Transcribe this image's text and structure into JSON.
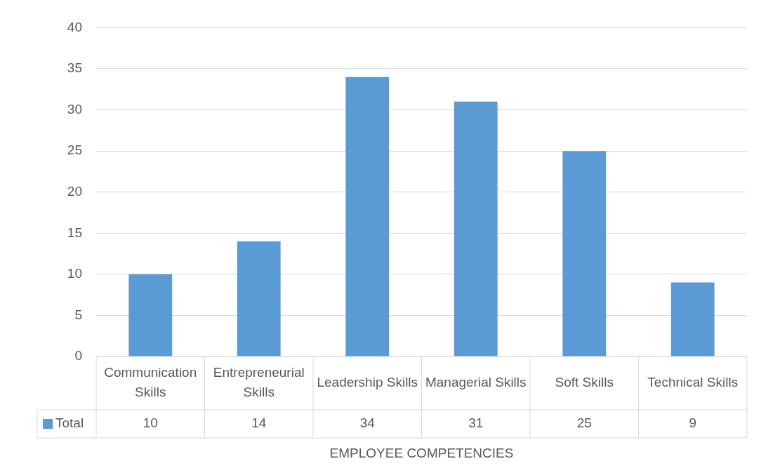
{
  "chart_data": {
    "type": "bar",
    "xlabel": "EMPLOYEE COMPETENCIES",
    "categories": [
      "Communication Skills",
      "Entrepreneurial Skills",
      "Leadership Skills",
      "Managerial Skills",
      "Soft Skills",
      "Technical Skills"
    ],
    "series": [
      {
        "name": "Total",
        "color": "#5b9bd5",
        "values": [
          10,
          14,
          34,
          31,
          25,
          9
        ]
      }
    ],
    "ylim": [
      0,
      40
    ],
    "yticks": [
      0,
      5,
      10,
      15,
      20,
      25,
      30,
      35,
      40
    ],
    "grid": "y",
    "legend": "bottom left",
    "data_labels": true
  }
}
